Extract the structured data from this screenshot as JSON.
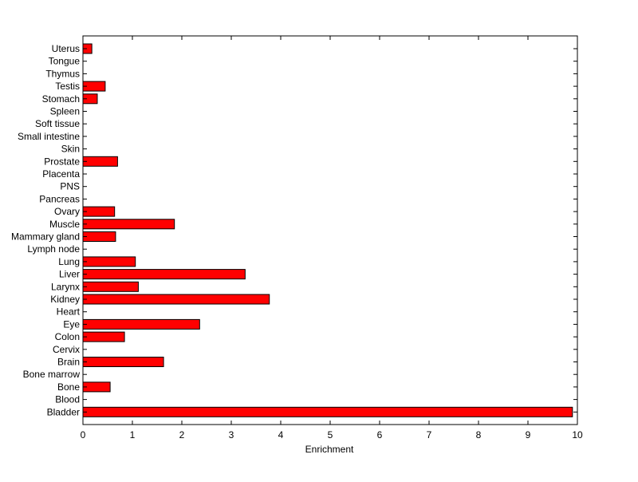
{
  "chart_data": {
    "type": "bar",
    "orientation": "horizontal",
    "title": "",
    "xlabel": "Enrichment",
    "ylabel": "",
    "xlim": [
      0,
      10
    ],
    "xticks": [
      0,
      1,
      2,
      3,
      4,
      5,
      6,
      7,
      8,
      9,
      10
    ],
    "grid": false,
    "legend": "none",
    "bar_color": "#ff0000",
    "edge_color": "#000000",
    "categories": [
      "Bladder",
      "Blood",
      "Bone",
      "Bone marrow",
      "Brain",
      "Cervix",
      "Colon",
      "Eye",
      "Heart",
      "Kidney",
      "Larynx",
      "Liver",
      "Lung",
      "Lymph node",
      "Mammary gland",
      "Muscle",
      "Ovary",
      "Pancreas",
      "PNS",
      "Placenta",
      "Prostate",
      "Skin",
      "Small intestine",
      "Soft tissue",
      "Spleen",
      "Stomach",
      "Testis",
      "Thymus",
      "Tongue",
      "Uterus"
    ],
    "values": [
      9.9,
      0,
      0.55,
      0,
      1.63,
      0,
      0.84,
      2.36,
      0,
      3.77,
      1.12,
      3.28,
      1.06,
      0,
      0.66,
      1.85,
      0.64,
      0,
      0,
      0,
      0.7,
      0,
      0,
      0,
      0,
      0.29,
      0.45,
      0,
      0,
      0.18
    ]
  }
}
